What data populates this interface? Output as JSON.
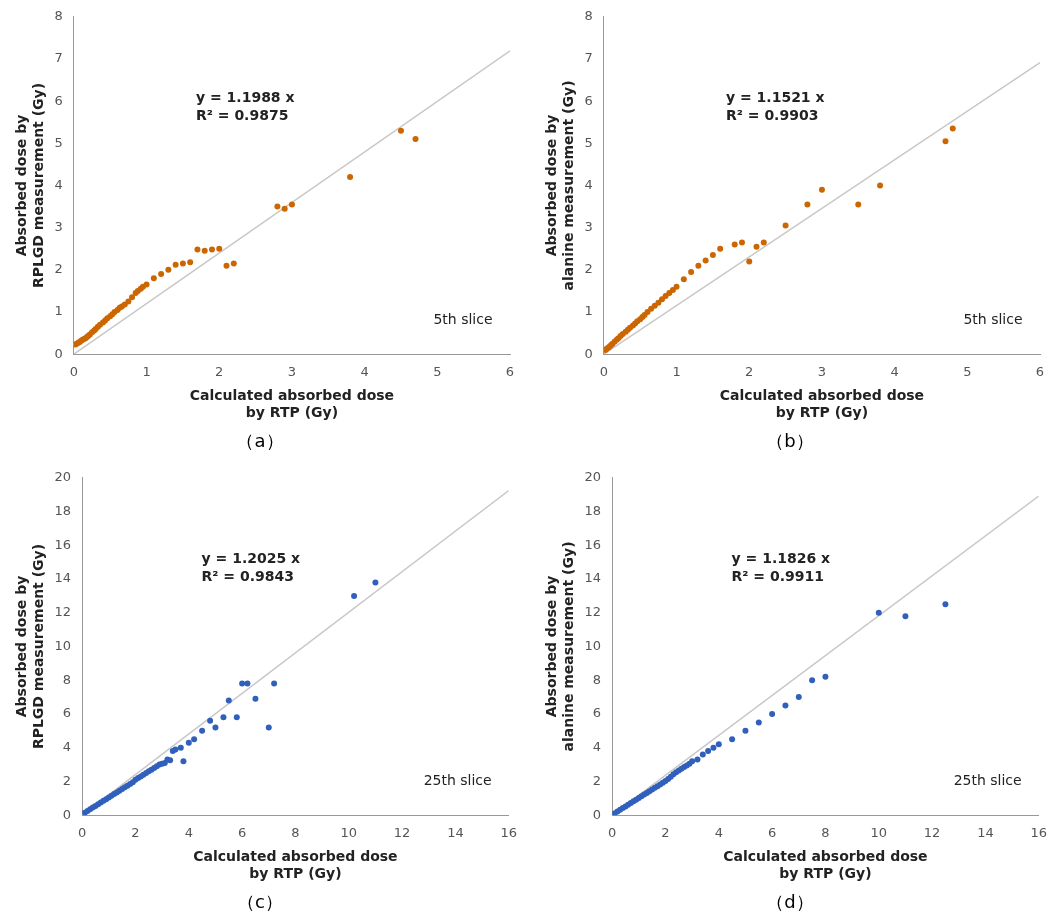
{
  "chart_data": [
    {
      "type": "scatter",
      "title": "（a）",
      "xlabel": "Calculated absorbed dose\nby RTP (Gy)",
      "ylabel": "Absorbed dose by\nRPLGD measurement (Gy)",
      "xlim": [
        0,
        6
      ],
      "ylim": [
        0,
        8
      ],
      "xticks": [
        0,
        1,
        2,
        3,
        4,
        5,
        6
      ],
      "yticks": [
        0,
        1,
        2,
        3,
        4,
        5,
        6,
        7,
        8
      ],
      "grid": false,
      "annotations": [
        "y = 1.1988 x\nR² = 0.9875",
        "5th slice"
      ],
      "series": [
        {
          "type": "line",
          "color": "#c8c8c8",
          "x": [
            0,
            6
          ],
          "values": [
            0,
            7.1928
          ]
        },
        {
          "type": "scatter",
          "color": "#CC6600",
          "x": [
            0.02,
            0.04,
            0.06,
            0.08,
            0.1,
            0.12,
            0.14,
            0.16,
            0.18,
            0.2,
            0.22,
            0.25,
            0.28,
            0.3,
            0.33,
            0.36,
            0.4,
            0.43,
            0.46,
            0.5,
            0.53,
            0.56,
            0.6,
            0.63,
            0.66,
            0.7,
            0.75,
            0.8,
            0.85,
            0.88,
            0.92,
            0.95,
            1.0,
            1.1,
            1.2,
            1.3,
            1.4,
            1.5,
            1.6,
            1.7,
            1.8,
            1.9,
            2.0,
            2.1,
            2.2,
            2.8,
            2.9,
            3.0,
            3.8,
            4.5,
            4.7
          ],
          "values": [
            0.23,
            0.25,
            0.27,
            0.29,
            0.32,
            0.34,
            0.36,
            0.38,
            0.41,
            0.44,
            0.47,
            0.52,
            0.56,
            0.6,
            0.65,
            0.7,
            0.75,
            0.8,
            0.85,
            0.9,
            0.95,
            1.0,
            1.05,
            1.1,
            1.13,
            1.18,
            1.25,
            1.35,
            1.45,
            1.5,
            1.55,
            1.6,
            1.65,
            1.8,
            1.9,
            2.0,
            2.12,
            2.15,
            2.18,
            2.48,
            2.45,
            2.48,
            2.5,
            2.1,
            2.15,
            3.5,
            3.45,
            3.55,
            4.2,
            5.3,
            5.1
          ]
        }
      ]
    },
    {
      "type": "scatter",
      "title": "（b）",
      "xlabel": "Calculated absorbed dose\nby RTP (Gy)",
      "ylabel": "Absorbed dose by\nalanine measurement (Gy)",
      "xlim": [
        0,
        6
      ],
      "ylim": [
        0,
        8
      ],
      "xticks": [
        0,
        1,
        2,
        3,
        4,
        5,
        6
      ],
      "yticks": [
        0,
        1,
        2,
        3,
        4,
        5,
        6,
        7,
        8
      ],
      "grid": false,
      "annotations": [
        "y = 1.1521 x\nR² = 0.9903",
        "5th slice"
      ],
      "series": [
        {
          "type": "line",
          "color": "#c8c8c8",
          "x": [
            0,
            6
          ],
          "values": [
            0,
            6.9126
          ]
        },
        {
          "type": "scatter",
          "color": "#CC6600",
          "x": [
            0.02,
            0.04,
            0.06,
            0.08,
            0.1,
            0.12,
            0.15,
            0.18,
            0.2,
            0.23,
            0.26,
            0.3,
            0.33,
            0.36,
            0.4,
            0.43,
            0.46,
            0.5,
            0.53,
            0.56,
            0.6,
            0.65,
            0.7,
            0.75,
            0.8,
            0.85,
            0.9,
            0.95,
            1.0,
            1.1,
            1.2,
            1.3,
            1.4,
            1.5,
            1.6,
            1.8,
            1.9,
            2.0,
            2.1,
            2.2,
            2.5,
            2.8,
            3.0,
            3.5,
            3.8,
            4.7,
            4.8
          ],
          "values": [
            0.1,
            0.13,
            0.15,
            0.18,
            0.22,
            0.25,
            0.3,
            0.35,
            0.38,
            0.43,
            0.48,
            0.53,
            0.58,
            0.63,
            0.68,
            0.73,
            0.78,
            0.83,
            0.88,
            0.93,
            1.0,
            1.08,
            1.15,
            1.22,
            1.3,
            1.38,
            1.45,
            1.52,
            1.6,
            1.78,
            1.95,
            2.1,
            2.22,
            2.35,
            2.5,
            2.6,
            2.65,
            2.2,
            2.55,
            2.65,
            3.05,
            3.55,
            3.9,
            3.55,
            4.0,
            5.05,
            5.35
          ]
        }
      ]
    },
    {
      "type": "scatter",
      "title": "（c）",
      "xlabel": "Calculated absorbed dose\nby RTP (Gy)",
      "ylabel": "Absorbed dose by\nRPLGD measurement (Gy)",
      "xlim": [
        0,
        16
      ],
      "ylim": [
        0,
        20
      ],
      "xticks": [
        0,
        2,
        4,
        6,
        8,
        10,
        12,
        14,
        16
      ],
      "yticks": [
        0,
        2,
        4,
        6,
        8,
        10,
        12,
        14,
        16,
        18,
        20
      ],
      "grid": false,
      "annotations": [
        "y = 1.2025 x\nR² = 0.9843",
        "25th slice"
      ],
      "series": [
        {
          "type": "line",
          "color": "#c8c8c8",
          "x": [
            0,
            16
          ],
          "values": [
            0,
            19.24
          ]
        },
        {
          "type": "scatter",
          "color": "#3060BB",
          "x": [
            0.1,
            0.2,
            0.3,
            0.4,
            0.5,
            0.6,
            0.7,
            0.8,
            0.9,
            1.0,
            1.1,
            1.2,
            1.3,
            1.4,
            1.5,
            1.6,
            1.7,
            1.8,
            1.9,
            2.0,
            2.1,
            2.2,
            2.3,
            2.4,
            2.5,
            2.6,
            2.7,
            2.8,
            2.9,
            3.0,
            3.1,
            3.2,
            3.3,
            3.4,
            3.5,
            3.7,
            3.8,
            4.0,
            4.2,
            4.5,
            4.8,
            5.0,
            5.3,
            5.5,
            5.8,
            6.0,
            6.2,
            6.5,
            7.0,
            7.2,
            10.2,
            11.0
          ],
          "values": [
            0.15,
            0.25,
            0.35,
            0.45,
            0.55,
            0.65,
            0.75,
            0.85,
            0.95,
            1.05,
            1.15,
            1.25,
            1.35,
            1.45,
            1.55,
            1.65,
            1.75,
            1.85,
            1.95,
            2.1,
            2.2,
            2.3,
            2.4,
            2.5,
            2.6,
            2.7,
            2.8,
            2.9,
            3.0,
            3.05,
            3.1,
            3.3,
            3.25,
            3.8,
            3.9,
            4.0,
            3.2,
            4.3,
            4.5,
            5.0,
            5.6,
            5.2,
            5.8,
            6.8,
            5.8,
            7.8,
            7.8,
            6.9,
            5.2,
            7.8,
            13.0,
            13.8
          ]
        }
      ]
    },
    {
      "type": "scatter",
      "title": "（d）",
      "xlabel": "Calculated absorbed dose\nby RTP (Gy)",
      "ylabel": "Absorbed dose by\nalanine measurement (Gy)",
      "xlim": [
        0,
        16
      ],
      "ylim": [
        0,
        20
      ],
      "xticks": [
        0,
        2,
        4,
        6,
        8,
        10,
        12,
        14,
        16
      ],
      "yticks": [
        0,
        2,
        4,
        6,
        8,
        10,
        12,
        14,
        16,
        18,
        20
      ],
      "grid": false,
      "annotations": [
        "y = 1.1826 x\nR² = 0.9911",
        "25th slice"
      ],
      "series": [
        {
          "type": "line",
          "color": "#c8c8c8",
          "x": [
            0,
            16
          ],
          "values": [
            0,
            18.9216
          ]
        },
        {
          "type": "scatter",
          "color": "#3060BB",
          "x": [
            0.1,
            0.2,
            0.3,
            0.4,
            0.5,
            0.6,
            0.7,
            0.8,
            0.9,
            1.0,
            1.1,
            1.2,
            1.3,
            1.4,
            1.5,
            1.6,
            1.7,
            1.8,
            1.9,
            2.0,
            2.1,
            2.2,
            2.3,
            2.4,
            2.5,
            2.6,
            2.7,
            2.8,
            2.9,
            3.0,
            3.2,
            3.4,
            3.6,
            3.8,
            4.0,
            4.5,
            5.0,
            5.5,
            6.0,
            6.5,
            7.0,
            7.5,
            8.0,
            10.0,
            11.0,
            12.5
          ],
          "values": [
            0.12,
            0.22,
            0.32,
            0.42,
            0.52,
            0.62,
            0.72,
            0.82,
            0.92,
            1.02,
            1.12,
            1.22,
            1.32,
            1.42,
            1.52,
            1.62,
            1.72,
            1.82,
            1.92,
            2.02,
            2.15,
            2.28,
            2.42,
            2.55,
            2.65,
            2.75,
            2.85,
            2.95,
            3.05,
            3.2,
            3.3,
            3.6,
            3.8,
            4.0,
            4.2,
            4.5,
            5.0,
            5.5,
            6.0,
            6.5,
            7.0,
            8.0,
            8.2,
            12.0,
            11.8,
            12.5
          ]
        }
      ]
    }
  ]
}
